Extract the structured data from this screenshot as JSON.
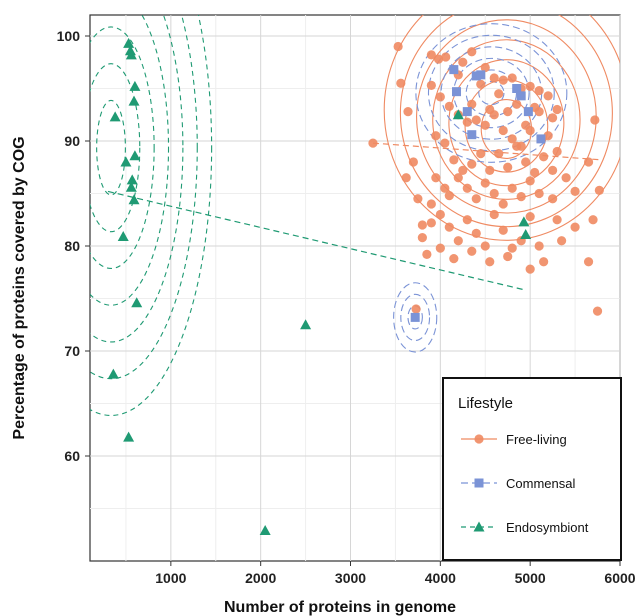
{
  "chart_data": {
    "type": "scatter",
    "title": "",
    "xlabel": "Number of proteins in genome",
    "ylabel": "Percentage of proteins covered by COG",
    "xlim": [
      100,
      6000
    ],
    "ylim": [
      50,
      102
    ],
    "xticks": [
      1000,
      2000,
      3000,
      4000,
      5000,
      6000
    ],
    "yticks": [
      60,
      70,
      80,
      90,
      100
    ],
    "grid": true,
    "legend": {
      "title": "Lifestyle",
      "placement": "bottom-right",
      "entries": [
        "Free-living",
        "Commensal",
        "Endosymbiont"
      ]
    },
    "colors": {
      "free_living": "#ef8a62",
      "commensal": "#7b93d6",
      "endosymbiont": "#1f9a73"
    },
    "series": [
      {
        "name": "Free-living",
        "marker": "circle",
        "points": [
          [
            3250,
            89.8
          ],
          [
            3530,
            99
          ],
          [
            3560,
            95.5
          ],
          [
            3640,
            92.8
          ],
          [
            3700,
            88
          ],
          [
            3620,
            86.5
          ],
          [
            3750,
            84.5
          ],
          [
            3900,
            84
          ],
          [
            3800,
            82
          ],
          [
            3730,
            74
          ],
          [
            5750,
            73.8
          ],
          [
            5770,
            85.3
          ],
          [
            5650,
            88
          ],
          [
            5720,
            92
          ],
          [
            5700,
            82.5
          ],
          [
            5650,
            78.5
          ],
          [
            3900,
            98.2
          ],
          [
            3980,
            97.8
          ],
          [
            4060,
            98
          ],
          [
            4150,
            96.8
          ],
          [
            4250,
            97.5
          ],
          [
            4350,
            98.5
          ],
          [
            4500,
            97
          ],
          [
            4600,
            96
          ],
          [
            4700,
            95.8
          ],
          [
            4800,
            96
          ],
          [
            4900,
            95
          ],
          [
            5000,
            95.2
          ],
          [
            5100,
            94.8
          ],
          [
            5200,
            94.3
          ],
          [
            5300,
            93
          ],
          [
            3900,
            95.3
          ],
          [
            4000,
            94.2
          ],
          [
            4100,
            93.3
          ],
          [
            4200,
            92.5
          ],
          [
            4300,
            91.8
          ],
          [
            4400,
            92
          ],
          [
            4500,
            91.5
          ],
          [
            4600,
            92.5
          ],
          [
            4700,
            91
          ],
          [
            4800,
            90.2
          ],
          [
            4900,
            89.5
          ],
          [
            5000,
            91
          ],
          [
            5100,
            92.8
          ],
          [
            5200,
            90.5
          ],
          [
            5300,
            89
          ],
          [
            3950,
            90.5
          ],
          [
            4050,
            89.8
          ],
          [
            4150,
            88.2
          ],
          [
            4250,
            87.2
          ],
          [
            4350,
            87.8
          ],
          [
            4450,
            88.8
          ],
          [
            4550,
            87.2
          ],
          [
            4650,
            88.8
          ],
          [
            4750,
            87.5
          ],
          [
            4850,
            89.5
          ],
          [
            4950,
            88
          ],
          [
            5050,
            87
          ],
          [
            5150,
            88.5
          ],
          [
            5250,
            87.2
          ],
          [
            5400,
            86.5
          ],
          [
            3950,
            86.5
          ],
          [
            4050,
            85.5
          ],
          [
            4100,
            84.8
          ],
          [
            4200,
            86.5
          ],
          [
            4300,
            85.5
          ],
          [
            4400,
            84.5
          ],
          [
            4500,
            86
          ],
          [
            4600,
            85
          ],
          [
            4700,
            84
          ],
          [
            4800,
            85.5
          ],
          [
            4900,
            84.7
          ],
          [
            5000,
            86.2
          ],
          [
            5100,
            85
          ],
          [
            5250,
            84.5
          ],
          [
            5500,
            85.2
          ],
          [
            3800,
            80.8
          ],
          [
            3900,
            82.2
          ],
          [
            4000,
            83
          ],
          [
            4100,
            81.8
          ],
          [
            4200,
            80.5
          ],
          [
            4300,
            82.5
          ],
          [
            4400,
            81.2
          ],
          [
            4500,
            80
          ],
          [
            4600,
            83
          ],
          [
            4700,
            81.5
          ],
          [
            4800,
            79.8
          ],
          [
            4900,
            80.5
          ],
          [
            5000,
            82.8
          ],
          [
            5100,
            80
          ],
          [
            5300,
            82.5
          ],
          [
            3850,
            79.2
          ],
          [
            4000,
            79.8
          ],
          [
            4150,
            78.8
          ],
          [
            4350,
            79.5
          ],
          [
            4550,
            78.5
          ],
          [
            4750,
            79
          ],
          [
            5000,
            77.8
          ],
          [
            5150,
            78.5
          ],
          [
            5350,
            80.5
          ],
          [
            5500,
            81.8
          ],
          [
            4200,
            96.3
          ],
          [
            4450,
            95.4
          ],
          [
            4650,
            94.5
          ],
          [
            4850,
            93.5
          ],
          [
            5050,
            93.2
          ],
          [
            5250,
            92.2
          ],
          [
            4350,
            93.5
          ],
          [
            4550,
            93
          ],
          [
            4750,
            92.8
          ],
          [
            4950,
            91.5
          ]
        ]
      },
      {
        "name": "Commensal",
        "marker": "square",
        "points": [
          [
            4150,
            96.8
          ],
          [
            4180,
            94.7
          ],
          [
            4300,
            92.8
          ],
          [
            4400,
            96.2
          ],
          [
            4450,
            96.3
          ],
          [
            4350,
            90.6
          ],
          [
            4850,
            95
          ],
          [
            4900,
            94.3
          ],
          [
            4980,
            92.8
          ],
          [
            5120,
            90.2
          ],
          [
            3720,
            73.2
          ]
        ]
      },
      {
        "name": "Endosymbiont",
        "marker": "triangle",
        "points": [
          [
            530,
            99.3
          ],
          [
            550,
            98.6
          ],
          [
            560,
            98.2
          ],
          [
            600,
            95.2
          ],
          [
            590,
            93.8
          ],
          [
            380,
            92.3
          ],
          [
            500,
            88
          ],
          [
            600,
            88.6
          ],
          [
            570,
            86.3
          ],
          [
            560,
            85.6
          ],
          [
            590,
            84.4
          ],
          [
            470,
            80.9
          ],
          [
            620,
            74.6
          ],
          [
            360,
            67.8
          ],
          [
            530,
            61.8
          ],
          [
            2050,
            52.9
          ],
          [
            2500,
            72.5
          ],
          [
            4200,
            92.5
          ],
          [
            4930,
            82.3
          ],
          [
            4950,
            81.1
          ]
        ]
      }
    ],
    "trend_lines": [
      {
        "series": "Endosymbiont",
        "points": [
          [
            300,
            85.2
          ],
          [
            4950,
            75.8
          ]
        ]
      },
      {
        "series": "Free-living",
        "points": [
          [
            3250,
            89.8
          ],
          [
            5800,
            88.2
          ]
        ]
      }
    ]
  }
}
